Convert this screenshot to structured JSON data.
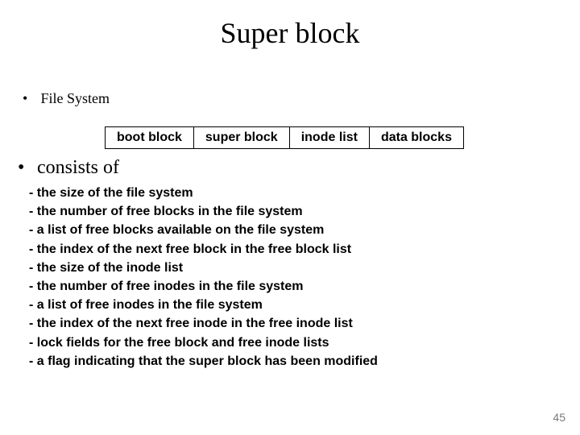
{
  "title": "Super block",
  "bullet1": "File System",
  "table": {
    "cells": [
      "boot block",
      "super block",
      "inode list",
      "data blocks"
    ]
  },
  "bullet2": "consists of",
  "details": [
    "- the size of the file system",
    "- the number of  free blocks in the file system",
    "- a list of free blocks available on the file system",
    "- the index of the next free block in the free block list",
    "- the size of the inode list",
    "- the number of free inodes in the file system",
    "- a list of free inodes in the file system",
    "- the index of the next free inode in the free inode list",
    "- lock fields for the free block and free inode lists",
    "- a flag indicating that the super block has been modified"
  ],
  "page_number": "45",
  "colors": {
    "background": "#ffffff",
    "text": "#000000",
    "page_num": "#7a7a7a",
    "border": "#000000"
  }
}
